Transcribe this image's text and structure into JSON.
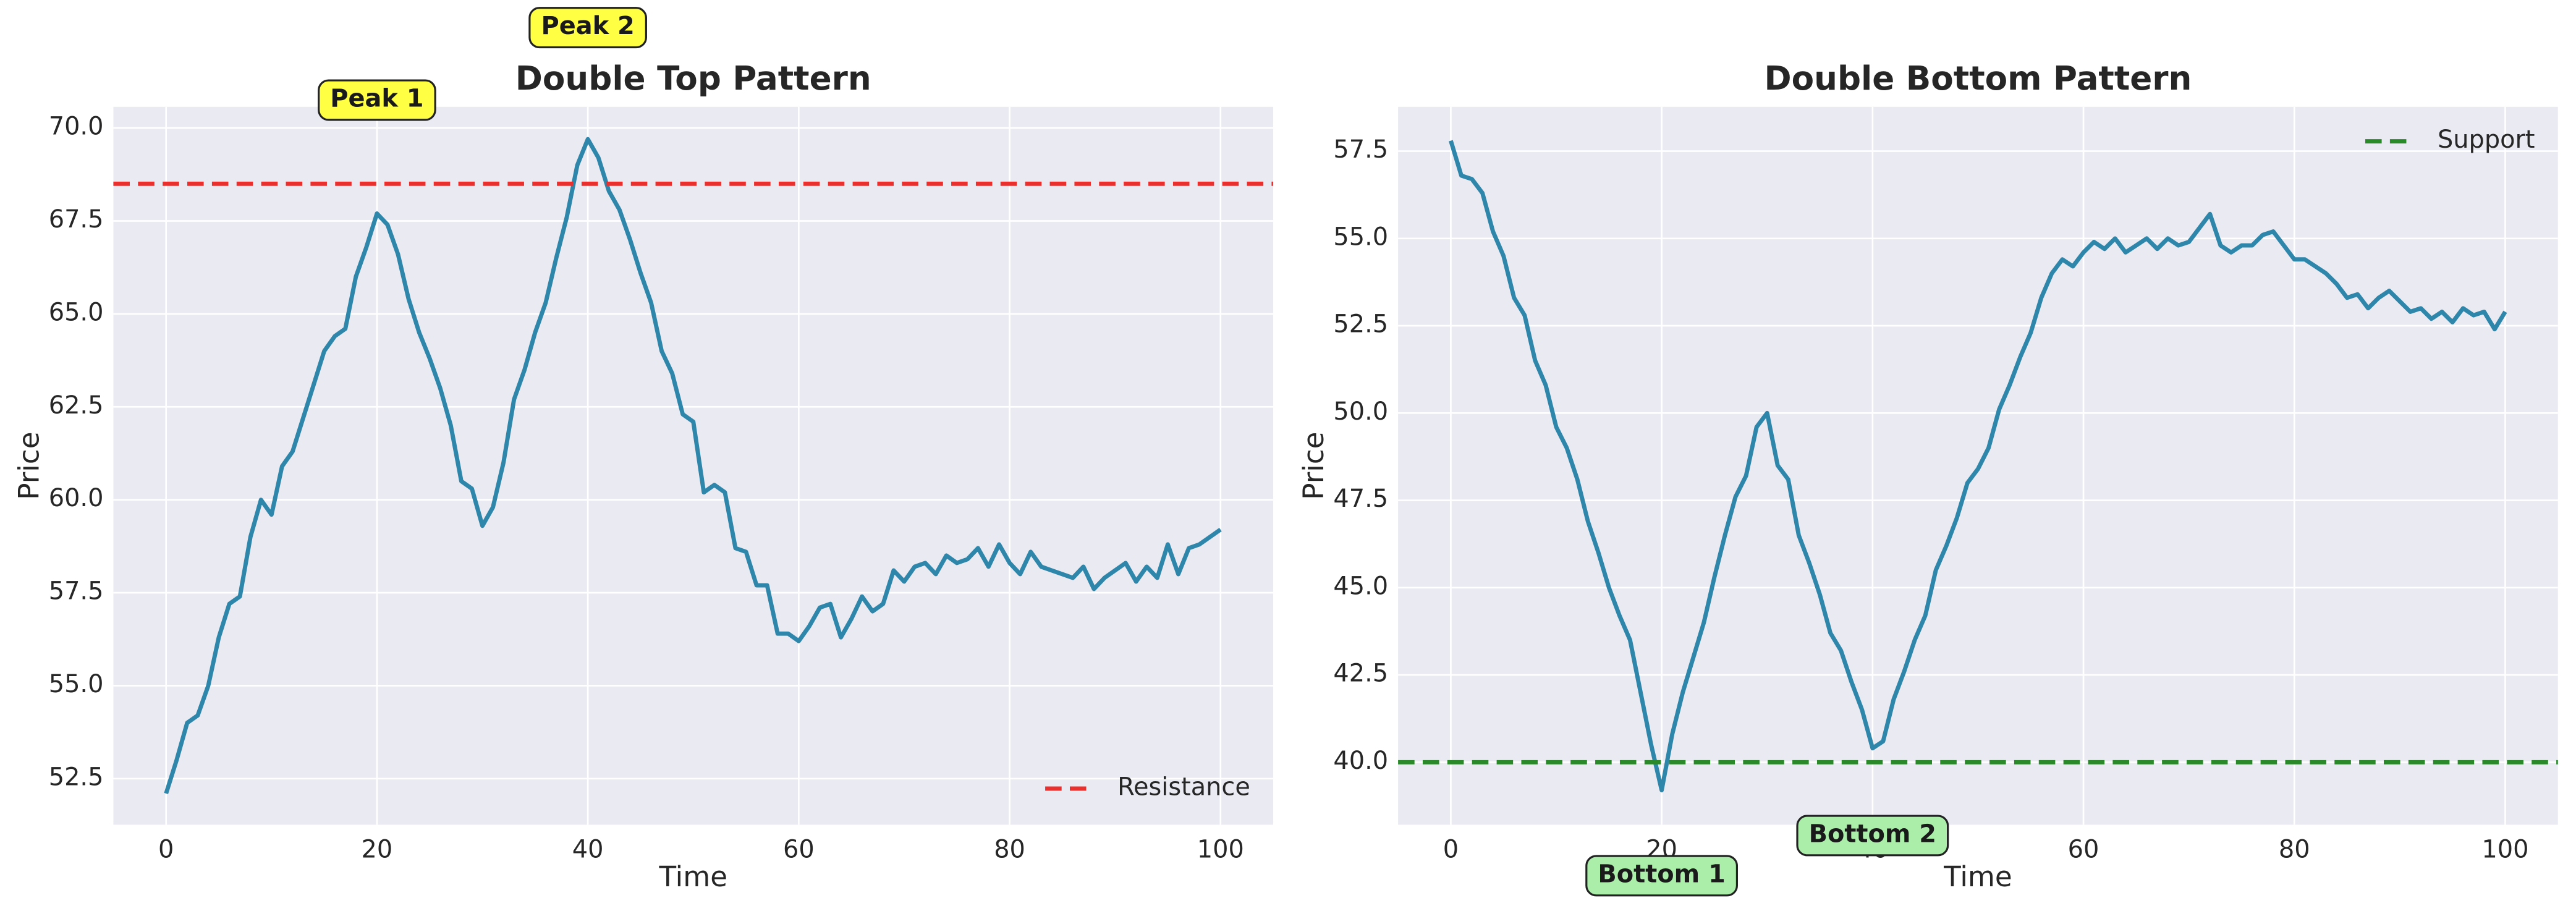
{
  "chart_data": [
    {
      "type": "line",
      "title": "Double Top Pattern",
      "xlabel": "Time",
      "ylabel": "Price",
      "x": [
        0,
        1,
        2,
        3,
        4,
        5,
        6,
        7,
        8,
        9,
        10,
        11,
        12,
        13,
        14,
        15,
        16,
        17,
        18,
        19,
        20,
        21,
        22,
        23,
        24,
        25,
        26,
        27,
        28,
        29,
        30,
        31,
        32,
        33,
        34,
        35,
        36,
        37,
        38,
        39,
        40,
        41,
        42,
        43,
        44,
        45,
        46,
        47,
        48,
        49,
        50,
        51,
        52,
        53,
        54,
        55,
        56,
        57,
        58,
        59,
        60,
        61,
        62,
        63,
        64,
        65,
        66,
        67,
        68,
        69,
        70,
        71,
        72,
        73,
        74,
        75,
        76,
        77,
        78,
        79,
        80,
        81,
        82,
        83,
        84,
        85,
        86,
        87,
        88,
        89,
        90,
        91,
        92,
        93,
        94,
        95,
        96,
        97,
        98,
        99,
        100
      ],
      "values": [
        52.1,
        53.0,
        54.0,
        54.2,
        55.0,
        56.3,
        57.2,
        57.4,
        59.0,
        60.0,
        59.6,
        60.9,
        61.3,
        62.2,
        63.1,
        64.0,
        64.4,
        64.6,
        66.0,
        66.8,
        67.7,
        67.4,
        66.6,
        65.4,
        64.5,
        63.8,
        63.0,
        62.0,
        60.5,
        60.3,
        59.3,
        59.8,
        61.0,
        62.7,
        63.5,
        64.5,
        65.3,
        66.5,
        67.6,
        69.0,
        69.7,
        69.2,
        68.3,
        67.8,
        67.0,
        66.1,
        65.3,
        64.0,
        63.4,
        62.3,
        62.1,
        60.2,
        60.4,
        60.2,
        58.7,
        58.6,
        57.7,
        57.7,
        56.4,
        56.4,
        56.2,
        56.6,
        57.1,
        57.2,
        56.3,
        56.8,
        57.4,
        57.0,
        57.2,
        58.1,
        57.8,
        58.2,
        58.3,
        58.0,
        58.5,
        58.3,
        58.4,
        58.7,
        58.2,
        58.8,
        58.3,
        58.0,
        58.6,
        58.2,
        58.1,
        58.0,
        57.9,
        58.2,
        57.6,
        57.9,
        58.1,
        58.3,
        57.8,
        58.2,
        57.9,
        58.8,
        58.0,
        58.7,
        58.8,
        59.0,
        59.2
      ],
      "color": "#2e86ab",
      "hlines": [
        {
          "name": "Resistance",
          "value": 68.5,
          "color": "#e8302e"
        }
      ],
      "legend": "lower right",
      "annotations": [
        {
          "text": "Peak 1",
          "x": 20,
          "y": 70.75,
          "color": "#ffff44"
        },
        {
          "text": "Peak 2",
          "x": 40,
          "y": 72.7,
          "color": "#ffff44"
        }
      ],
      "xlim": [
        -5,
        105
      ],
      "xticks": [
        0,
        20,
        40,
        60,
        80,
        100
      ],
      "ylim": [
        51.26,
        70.57
      ],
      "yticks": [
        52.5,
        {
          "value": 55,
          "label": "55.0"
        },
        57.5,
        {
          "value": 60,
          "label": "60.0"
        },
        62.5,
        {
          "value": 65,
          "label": "65.0"
        },
        67.5,
        {
          "value": 70,
          "label": "70.0"
        }
      ],
      "grid": true
    },
    {
      "type": "line",
      "title": "Double Bottom Pattern",
      "xlabel": "Time",
      "ylabel": "Price",
      "x": [
        0,
        1,
        2,
        3,
        4,
        5,
        6,
        7,
        8,
        9,
        10,
        11,
        12,
        13,
        14,
        15,
        16,
        17,
        18,
        19,
        20,
        21,
        22,
        23,
        24,
        25,
        26,
        27,
        28,
        29,
        30,
        31,
        32,
        33,
        34,
        35,
        36,
        37,
        38,
        39,
        40,
        41,
        42,
        43,
        44,
        45,
        46,
        47,
        48,
        49,
        50,
        51,
        52,
        53,
        54,
        55,
        56,
        57,
        58,
        59,
        60,
        61,
        62,
        63,
        64,
        65,
        66,
        67,
        68,
        69,
        70,
        71,
        72,
        73,
        74,
        75,
        76,
        77,
        78,
        79,
        80,
        81,
        82,
        83,
        84,
        85,
        86,
        87,
        88,
        89,
        90,
        91,
        92,
        93,
        94,
        95,
        96,
        97,
        98,
        99,
        100
      ],
      "values": [
        57.8,
        56.8,
        56.7,
        56.3,
        55.2,
        54.5,
        53.3,
        52.8,
        51.5,
        50.8,
        49.6,
        49.0,
        48.1,
        46.9,
        46.0,
        45.0,
        44.2,
        43.5,
        42.0,
        40.5,
        39.2,
        40.8,
        42.0,
        43.0,
        44.0,
        45.3,
        46.5,
        47.6,
        48.2,
        49.6,
        50.0,
        48.5,
        48.1,
        46.5,
        45.7,
        44.8,
        43.7,
        43.2,
        42.3,
        41.5,
        40.4,
        40.6,
        41.8,
        42.6,
        43.5,
        44.2,
        45.5,
        46.2,
        47.0,
        48.0,
        48.4,
        49.0,
        50.1,
        50.8,
        51.6,
        52.3,
        53.3,
        54.0,
        54.4,
        54.2,
        54.6,
        54.9,
        54.7,
        55.0,
        54.6,
        54.8,
        55.0,
        54.7,
        55.0,
        54.8,
        54.9,
        55.3,
        55.7,
        54.8,
        54.6,
        54.8,
        54.8,
        55.1,
        55.2,
        54.8,
        54.4,
        54.4,
        54.2,
        54.0,
        53.7,
        53.3,
        53.4,
        53.0,
        53.3,
        53.5,
        53.2,
        52.9,
        53.0,
        52.7,
        52.9,
        52.6,
        53.0,
        52.8,
        52.9,
        52.4,
        52.9
      ],
      "color": "#2e86ab",
      "hlines": [
        {
          "name": "Support",
          "value": 40,
          "color": "#2a8a2a"
        }
      ],
      "legend": "upper right",
      "annotations": [
        {
          "text": "Bottom 1",
          "x": 20,
          "y": 36.75,
          "color": "#aaeeaa"
        },
        {
          "text": "Bottom 2",
          "x": 40,
          "y": 37.9,
          "color": "#aaeeaa"
        }
      ],
      "xlim": [
        -5,
        105
      ],
      "xticks": [
        0,
        20,
        40,
        60,
        80,
        100
      ],
      "ylim": [
        38.21,
        58.77
      ],
      "yticks": [
        {
          "value": 40,
          "label": "40.0"
        },
        42.5,
        {
          "value": 45,
          "label": "45.0"
        },
        47.5,
        {
          "value": 50,
          "label": "50.0"
        },
        52.5,
        {
          "value": 55,
          "label": "55.0"
        },
        57.5
      ],
      "grid": true
    }
  ]
}
